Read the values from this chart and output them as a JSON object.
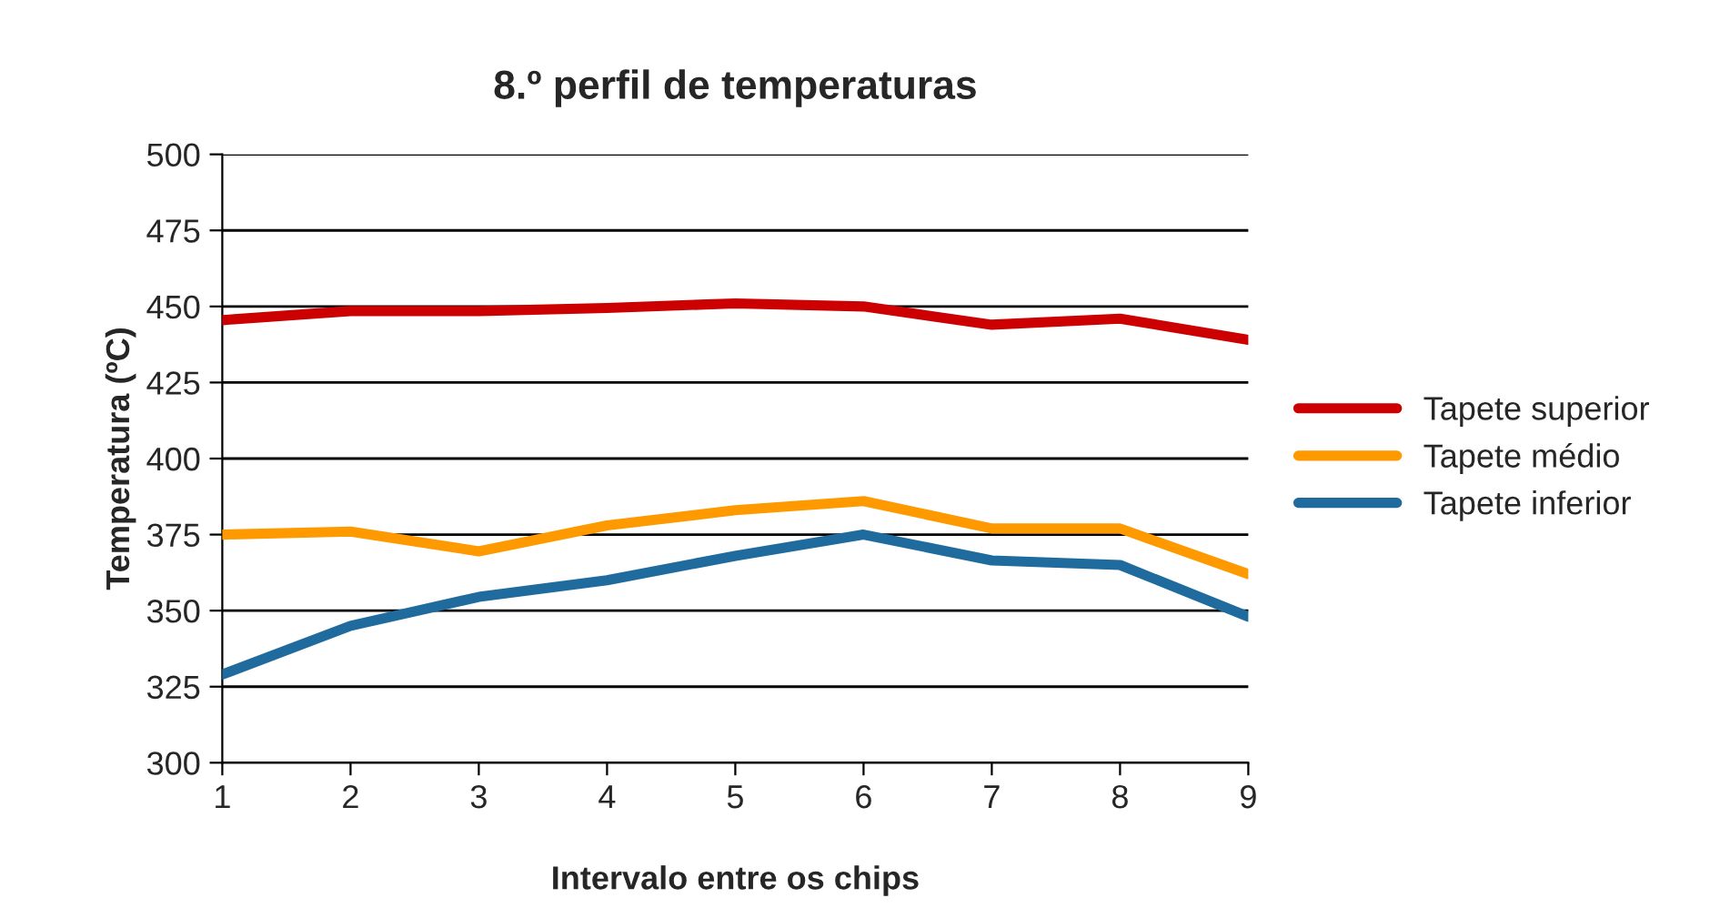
{
  "chart_data": {
    "type": "line",
    "title": "8.º perfil de temperaturas",
    "xlabel": "Intervalo entre os chips",
    "ylabel": "Temperatura (ºC)",
    "x": [
      1,
      2,
      3,
      4,
      5,
      6,
      7,
      8,
      9
    ],
    "series": [
      {
        "name": "Tapete superior",
        "color": "#cc0000",
        "values": [
          445.5,
          448.5,
          448.5,
          449.5,
          451,
          450,
          444,
          446,
          439
        ]
      },
      {
        "name": "Tapete médio",
        "color": "#ff9900",
        "values": [
          375,
          376,
          369.5,
          378,
          383,
          386,
          377,
          377,
          362
        ]
      },
      {
        "name": "Tapete inferior",
        "color": "#1f6b9e",
        "values": [
          329,
          345,
          354.5,
          360,
          368,
          375,
          366.5,
          365,
          348
        ]
      }
    ],
    "xlim": [
      1,
      9
    ],
    "xticks": [
      1,
      2,
      3,
      4,
      5,
      6,
      7,
      8,
      9
    ],
    "ylim": [
      300,
      500
    ],
    "yticks": [
      300,
      325,
      350,
      375,
      400,
      425,
      450,
      475,
      500
    ],
    "grid": "y",
    "legend": "right",
    "marker": "none",
    "line_style": "solid"
  }
}
